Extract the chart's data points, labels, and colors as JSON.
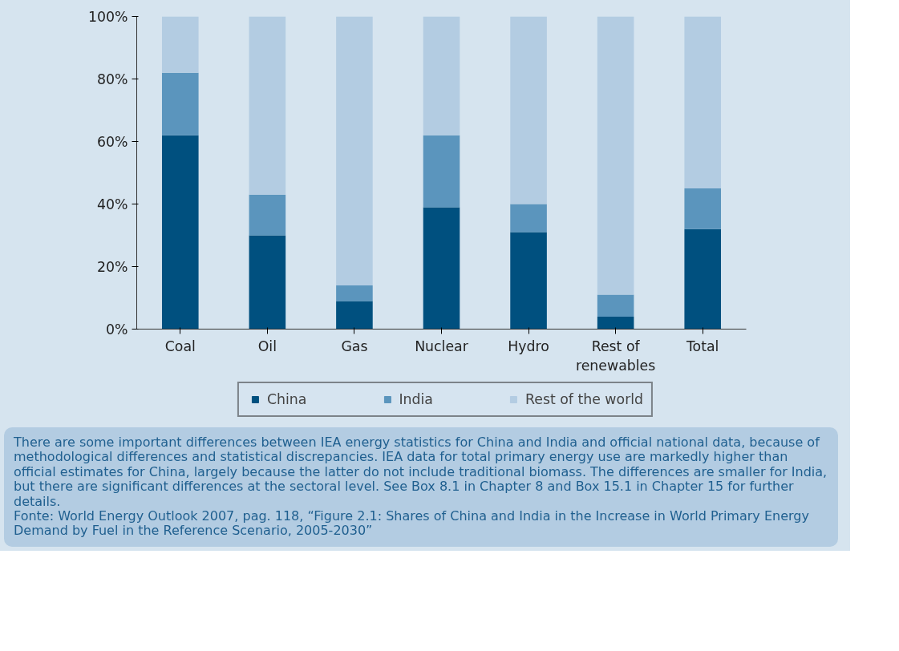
{
  "chart_data": {
    "type": "bar",
    "stacked": true,
    "categories": [
      "Coal",
      "Oil",
      "Gas",
      "Nuclear",
      "Hydro",
      "Rest of renewables",
      "Total"
    ],
    "series": [
      {
        "name": "China",
        "color": "#00507f",
        "values": [
          62,
          30,
          9,
          39,
          31,
          4,
          32
        ]
      },
      {
        "name": "India",
        "color": "#5b95bd",
        "values": [
          20,
          13,
          5,
          23,
          9,
          7,
          13
        ]
      },
      {
        "name": "Rest of the world",
        "color": "#b3cce2",
        "values": [
          18,
          57,
          86,
          38,
          60,
          89,
          55
        ]
      }
    ],
    "ylim": [
      0,
      100
    ],
    "yticks": [
      {
        "value": 0,
        "label": "0%"
      },
      {
        "value": 20,
        "label": "20%"
      },
      {
        "value": 40,
        "label": "40%"
      },
      {
        "value": 60,
        "label": "60%"
      },
      {
        "value": 80,
        "label": "80%"
      },
      {
        "value": 100,
        "label": "100%"
      }
    ],
    "grid": false,
    "legend": "bottom",
    "annotations": [
      "There are some important differences between IEA energy statistics for China and India and official national data, because of methodological differences and statistical discrepancies. IEA data for total primary energy use are markedly higher than official estimates for China, largely because the latter do not include traditional biomass. The differences are smaller for India, but there are significant differences at the sectoral level. See Box 8.1 in Chapter 8 and Box 15.1 in Chapter 15 for further details.",
      "Fonte: World Energy Outlook 2007, pag. 118, “Figure 2.1: Shares of China and India in the Increase in World Primary Energy Demand by Fuel in the Reference Scenario, 2005-2030”"
    ]
  }
}
